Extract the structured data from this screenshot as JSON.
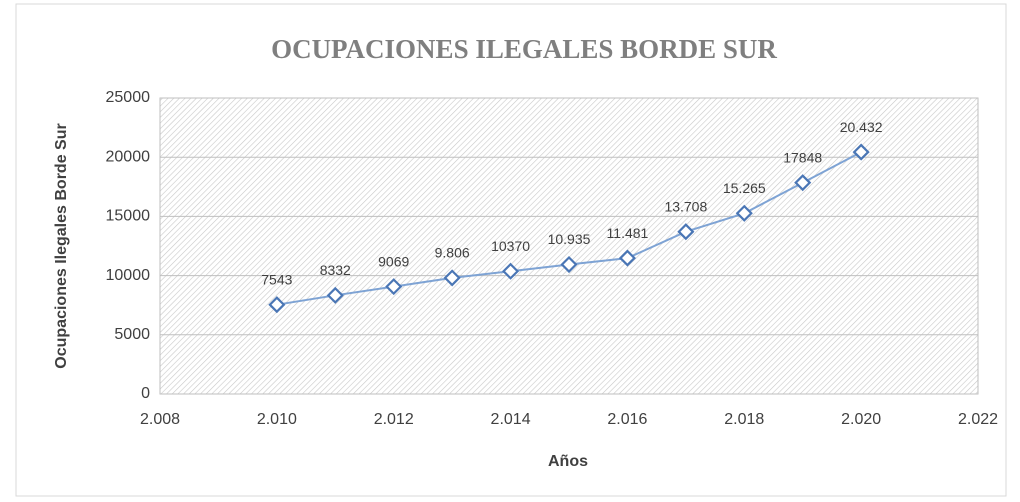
{
  "chart_data": {
    "type": "line",
    "title": "OCUPACIONES ILEGALES BORDE SUR",
    "x_label": "Años",
    "y_label": "Ocupaciones Ilegales  Borde Sur",
    "x": [
      2010,
      2011,
      2012,
      2013,
      2014,
      2015,
      2016,
      2017,
      2018,
      2019,
      2020
    ],
    "series": [
      {
        "color": "#4a76b5",
        "values": [
          7543,
          8332,
          9069,
          9806,
          10370,
          10935,
          11481,
          13708,
          15265,
          17848,
          20432
        ],
        "value_labels": [
          "7543",
          "8332",
          "9069",
          "9.806",
          "10370",
          "10.935",
          "11.481",
          "13.708",
          "15.265",
          "17848",
          "20.432"
        ]
      }
    ],
    "xlim": [
      2008,
      2022
    ],
    "xticks": [
      {
        "value": 2008,
        "label": "2.008"
      },
      {
        "value": 2010,
        "label": "2.010"
      },
      {
        "value": 2012,
        "label": "2.012"
      },
      {
        "value": 2014,
        "label": "2.014"
      },
      {
        "value": 2016,
        "label": "2.016"
      },
      {
        "value": 2018,
        "label": "2.018"
      },
      {
        "value": 2020,
        "label": "2.020"
      },
      {
        "value": 2022,
        "label": "2.022"
      }
    ],
    "ylim": [
      0,
      25000
    ],
    "yticks": [
      0,
      5000,
      10000,
      15000,
      20000,
      25000
    ],
    "grid": true
  }
}
